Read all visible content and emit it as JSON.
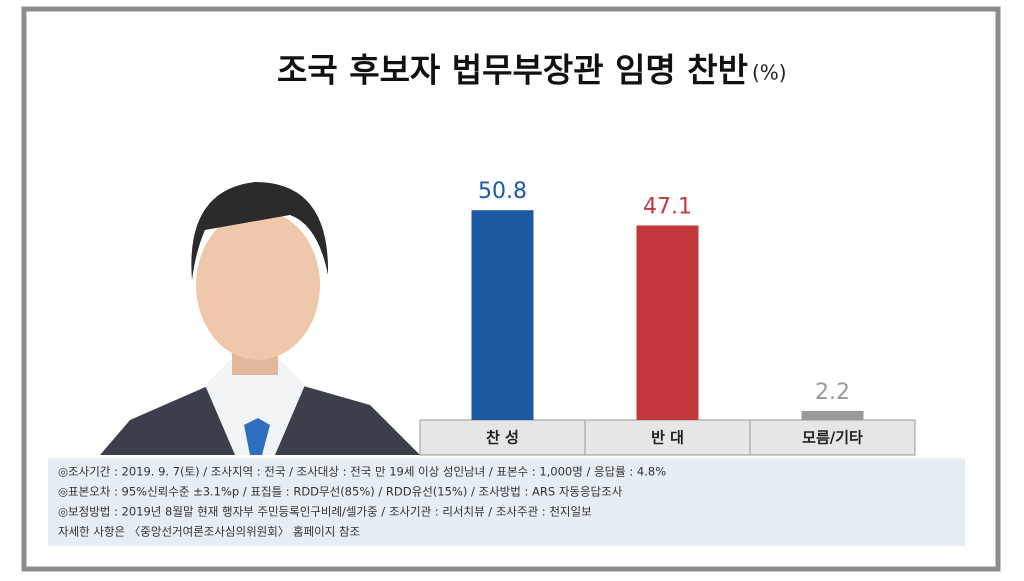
{
  "chart_data": {
    "type": "bar",
    "title": "조국 후보자 법무부장관 임명 찬반",
    "unit": "(%)",
    "categories": [
      "찬 성",
      "반 대",
      "모름/기타"
    ],
    "values": [
      50.8,
      47.1,
      2.2
    ],
    "colors": [
      "#1b5aa0",
      "#c2383c",
      "#9a9a9a"
    ],
    "notes": [
      "◎조사기간 : 2019. 9. 7(토) / 조사지역 : 전국 / 조사대상 : 전국 만 19세 이상 성인남녀 / 표본수 : 1,000명 / 응답률 : 4.8%",
      "◎표본오차 : 95%신뢰수준 ±3.1%p / 표집틀 : RDD무선(85%) / RDD유선(15%) / 조사방법 : ARS 자동응답조사",
      "◎보정방법 : 2019년 8월말 현재 행자부 주민등록인구비례/셀가중 / 조사기관 : 리서치뷰 / 조사주관 : 천지일보",
      "자세한 사항은 〈중앙선거여론조사심의위원회〉 홈페이지 참조"
    ]
  }
}
